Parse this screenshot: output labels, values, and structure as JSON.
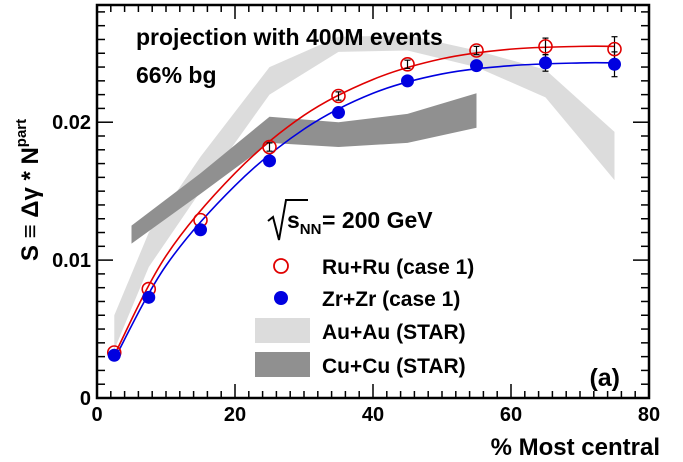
{
  "chart_data": {
    "type": "scatter",
    "annotations": {
      "line1": "projection with 400M events",
      "line2": "66% bg",
      "energy": "= 200 GeV",
      "energy_symbol": "s",
      "energy_subscript": "NN",
      "panel": "(a)"
    },
    "xlabel": "% Most central",
    "ylabel": {
      "main": "S ≡ Δγ * N",
      "sub": "part"
    },
    "xlim": [
      0,
      80
    ],
    "ylim": [
      0,
      0.0285
    ],
    "x_ticks": [
      0,
      20,
      40,
      60,
      80
    ],
    "x_tick_labels": [
      "0",
      "20",
      "40",
      "60",
      "80"
    ],
    "y_ticks": [
      0,
      0.01,
      0.02
    ],
    "y_tick_labels": [
      "0",
      "0.01",
      "0.02"
    ],
    "legend_position": "center-right",
    "series": [
      {
        "name": "Ru+Ru (case 1)",
        "kind": "markers",
        "marker": "open-circle",
        "color": "#e00000",
        "x": [
          2.5,
          7.5,
          15,
          25,
          35,
          45,
          55,
          65,
          75
        ],
        "y": [
          0.0033,
          0.0079,
          0.0129,
          0.0182,
          0.0219,
          0.0242,
          0.0252,
          0.0255,
          0.0253
        ],
        "err": [
          0.0002,
          0.0002,
          0.0002,
          0.0003,
          0.0003,
          0.0003,
          0.0003,
          0.0006,
          0.0009
        ],
        "fit_x": [
          2.5,
          10,
          20,
          30,
          40,
          50,
          60,
          70,
          75
        ],
        "fit_y": [
          0.0031,
          0.0103,
          0.0163,
          0.0205,
          0.0231,
          0.0246,
          0.0253,
          0.0255,
          0.0255
        ]
      },
      {
        "name": "Zr+Zr (case 1)",
        "kind": "markers",
        "marker": "filled-circle",
        "color": "#0000e0",
        "x": [
          2.5,
          7.5,
          15,
          25,
          35,
          45,
          55,
          65,
          75
        ],
        "y": [
          0.0031,
          0.0073,
          0.0122,
          0.0172,
          0.0207,
          0.023,
          0.0241,
          0.0243,
          0.0242
        ],
        "err": [
          0.0002,
          0.0002,
          0.0002,
          0.0003,
          0.0003,
          0.0003,
          0.0003,
          0.0006,
          0.0009
        ],
        "fit_x": [
          2.5,
          10,
          20,
          30,
          40,
          50,
          60,
          70,
          75
        ],
        "fit_y": [
          0.0028,
          0.0096,
          0.0154,
          0.0195,
          0.0221,
          0.0235,
          0.0241,
          0.0243,
          0.0243
        ]
      },
      {
        "name": "Au+Au (STAR)",
        "kind": "band",
        "color": "#dcdcdc",
        "x": [
          2.5,
          7.5,
          15,
          25,
          35,
          45,
          55,
          65,
          75
        ],
        "y_low": [
          0.0035,
          0.0095,
          0.015,
          0.022,
          0.0251,
          0.0252,
          0.024,
          0.0218,
          0.0158
        ],
        "y_high": [
          0.006,
          0.012,
          0.0175,
          0.024,
          0.0262,
          0.0263,
          0.0252,
          0.0238,
          0.0193
        ]
      },
      {
        "name": "Cu+Cu (STAR)",
        "kind": "band",
        "color": "#909090",
        "x": [
          5,
          15,
          25,
          35,
          45,
          55
        ],
        "y_low": [
          0.0112,
          0.0148,
          0.0185,
          0.0182,
          0.0185,
          0.0196
        ],
        "y_high": [
          0.0125,
          0.0163,
          0.0204,
          0.02,
          0.0206,
          0.0221
        ]
      }
    ],
    "colors": {
      "axis": "#000000",
      "ru_marker": "#e00000",
      "zr_marker": "#0000e0",
      "auau_band": "#dcdcdc",
      "cucu_band": "#909090"
    }
  }
}
